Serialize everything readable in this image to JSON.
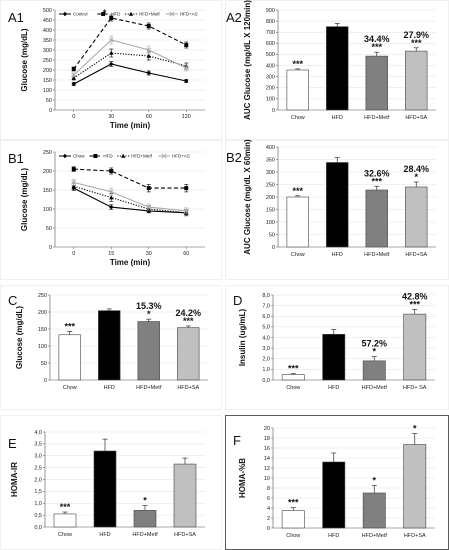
{
  "chart_data": [
    {
      "id": "A1",
      "panel_label": "A1",
      "type": "line",
      "xlabel": "Time (min)",
      "ylabel": "Glucose (mg/dL)",
      "x": [
        0,
        30,
        60,
        120
      ],
      "xticks": [
        "0",
        "30",
        "60",
        "120"
      ],
      "ylim": [
        0,
        500
      ],
      "yticks": [
        "0",
        "50",
        "100",
        "150",
        "200",
        "250",
        "300",
        "350",
        "400",
        "450",
        "500"
      ],
      "legend_position": "top",
      "series": [
        {
          "name": "Control",
          "style": "solid",
          "color": "#000000",
          "marker": "diamond",
          "values": [
            130,
            230,
            185,
            145
          ],
          "errors": [
            8,
            12,
            10,
            8
          ]
        },
        {
          "name": "HFD",
          "style": "dash",
          "color": "#000000",
          "marker": "square",
          "values": [
            205,
            460,
            420,
            325
          ],
          "errors": [
            10,
            15,
            15,
            15
          ]
        },
        {
          "name": "HFD+Metf",
          "style": "dot",
          "color": "#000000",
          "marker": "triangle",
          "values": [
            160,
            285,
            270,
            220
          ],
          "errors": [
            10,
            20,
            20,
            15
          ]
        },
        {
          "name": "HFD+AS",
          "style": "solid",
          "color": "#aaaaaa",
          "marker": "x",
          "values": [
            175,
            350,
            300,
            210
          ],
          "errors": [
            10,
            20,
            20,
            15
          ]
        }
      ],
      "point_labels": [
        {
          "series": 1,
          "index": 1,
          "text": "*"
        }
      ]
    },
    {
      "id": "A2",
      "panel_label": "A2",
      "type": "bar",
      "ylabel": "AUC Glucose (mg/dL X 120min)",
      "categories": [
        "Chow",
        "HFD",
        "HFD+Metf",
        "HFD+SA"
      ],
      "values": [
        360,
        750,
        485,
        530
      ],
      "errors": [
        10,
        30,
        35,
        30
      ],
      "colors": [
        "#ffffff",
        "#000000",
        "#808080",
        "#c0c0c0"
      ],
      "ylim": [
        0,
        900
      ],
      "yticks": [
        "0",
        "100",
        "200",
        "300",
        "400",
        "500",
        "600",
        "700",
        "800",
        "900"
      ],
      "significance": [
        "***",
        "",
        "***",
        "***"
      ],
      "percent_labels": [
        "",
        "",
        "34.4%",
        "27.9%"
      ]
    },
    {
      "id": "B1",
      "panel_label": "B1",
      "type": "line",
      "xlabel": "Time (min)",
      "ylabel": "Glucose (mg/dL)",
      "x": [
        0,
        15,
        30,
        60
      ],
      "xticks": [
        "0",
        "15",
        "30",
        "60"
      ],
      "ylim": [
        0,
        250
      ],
      "yticks": [
        "0",
        "50",
        "100",
        "150",
        "200",
        "250"
      ],
      "legend_position": "top",
      "series": [
        {
          "name": "Chow",
          "style": "solid",
          "color": "#000000",
          "marker": "diamond",
          "values": [
            155,
            105,
            95,
            90
          ],
          "errors": [
            6,
            6,
            5,
            5
          ]
        },
        {
          "name": "HFD",
          "style": "dash",
          "color": "#000000",
          "marker": "square",
          "values": [
            205,
            200,
            155,
            155
          ],
          "errors": [
            6,
            8,
            10,
            10
          ]
        },
        {
          "name": "HFD+Metf",
          "style": "dot",
          "color": "#000000",
          "marker": "triangle",
          "values": [
            160,
            130,
            100,
            90
          ],
          "errors": [
            8,
            10,
            8,
            8
          ]
        },
        {
          "name": "HFD+AS",
          "style": "solid",
          "color": "#aaaaaa",
          "marker": "x",
          "values": [
            170,
            145,
            105,
            95
          ],
          "errors": [
            8,
            10,
            8,
            8
          ]
        }
      ]
    },
    {
      "id": "B2",
      "panel_label": "B2",
      "type": "bar",
      "ylabel": "AUC Glucose (mg/dL X 60min)",
      "categories": [
        "Chow",
        "HFD",
        "HFD+Metf",
        "HFD+SA"
      ],
      "values": [
        200,
        338,
        228,
        240
      ],
      "errors": [
        5,
        20,
        15,
        20
      ],
      "colors": [
        "#ffffff",
        "#000000",
        "#808080",
        "#c0c0c0"
      ],
      "ylim": [
        0,
        400
      ],
      "yticks": [
        "0",
        "50",
        "100",
        "150",
        "200",
        "250",
        "300",
        "350",
        "400"
      ],
      "significance": [
        "***",
        "",
        "***",
        "*"
      ],
      "percent_labels": [
        "",
        "",
        "32.6%",
        "28.4%"
      ]
    },
    {
      "id": "C",
      "panel_label": "C",
      "type": "bar",
      "ylabel": "Glucose (mg/dL)",
      "categories": [
        "Chow",
        "HFD",
        "HFD+Metf",
        "HFD+SA"
      ],
      "values": [
        133,
        204,
        172,
        154
      ],
      "errors": [
        10,
        5,
        7,
        5
      ],
      "colors": [
        "#ffffff",
        "#000000",
        "#808080",
        "#c0c0c0"
      ],
      "ylim": [
        0,
        250
      ],
      "yticks": [
        "0",
        "50",
        "100",
        "150",
        "200",
        "250"
      ],
      "significance": [
        "***",
        "",
        "*",
        "***"
      ],
      "percent_labels": [
        "",
        "",
        "15.3%",
        "24.2%"
      ]
    },
    {
      "id": "D",
      "panel_label": "D",
      "type": "bar",
      "ylabel": "Insulin (ug/mL)",
      "categories": [
        "Chow",
        "HFD",
        "HFD+Metf",
        "HFD+ SA"
      ],
      "values": [
        0.5,
        4.3,
        1.8,
        6.2
      ],
      "errors": [
        0.1,
        0.45,
        0.4,
        0.45
      ],
      "colors": [
        "#ffffff",
        "#000000",
        "#808080",
        "#c0c0c0"
      ],
      "ylim": [
        0,
        8
      ],
      "yticks": [
        "0,0",
        "1,0",
        "2,0",
        "3,0",
        "4,0",
        "5,0",
        "6,0",
        "7,0",
        "8,0"
      ],
      "significance": [
        "***",
        "",
        "*",
        "***"
      ],
      "percent_labels": [
        "",
        "",
        "57.2%",
        "42.8%"
      ]
    },
    {
      "id": "E",
      "panel_label": "E",
      "type": "bar",
      "ylabel": "HOMA-IR",
      "categories": [
        "Chow",
        "HFD",
        "HFD+Metf",
        "HFD+SA"
      ],
      "values": [
        0.55,
        3.2,
        0.7,
        2.65
      ],
      "errors": [
        0.08,
        0.5,
        0.2,
        0.25
      ],
      "colors": [
        "#ffffff",
        "#000000",
        "#808080",
        "#c0c0c0"
      ],
      "ylim": [
        0,
        4
      ],
      "yticks": [
        "0,0",
        "0,5",
        "1,0",
        "1,5",
        "2,0",
        "2,5",
        "3,0",
        "3,5",
        "4,0"
      ],
      "significance": [
        "***",
        "",
        "*",
        ""
      ],
      "percent_labels": [
        "",
        "",
        "",
        ""
      ]
    },
    {
      "id": "F",
      "panel_label": "F",
      "type": "bar",
      "ylabel": "HOMA-%B",
      "categories": [
        "Chow",
        "HFD",
        "HFD+Metf",
        "HFD+SA"
      ],
      "values": [
        3.5,
        13.2,
        7.0,
        16.7
      ],
      "errors": [
        0.6,
        1.8,
        1.5,
        2.2
      ],
      "colors": [
        "#ffffff",
        "#000000",
        "#808080",
        "#c0c0c0"
      ],
      "ylim": [
        0,
        20
      ],
      "yticks": [
        "0",
        "2",
        "4",
        "6",
        "8",
        "10",
        "12",
        "14",
        "16",
        "18",
        "20"
      ],
      "significance": [
        "***",
        "",
        "*",
        "*"
      ],
      "percent_labels": [
        "",
        "",
        "",
        ""
      ]
    }
  ]
}
